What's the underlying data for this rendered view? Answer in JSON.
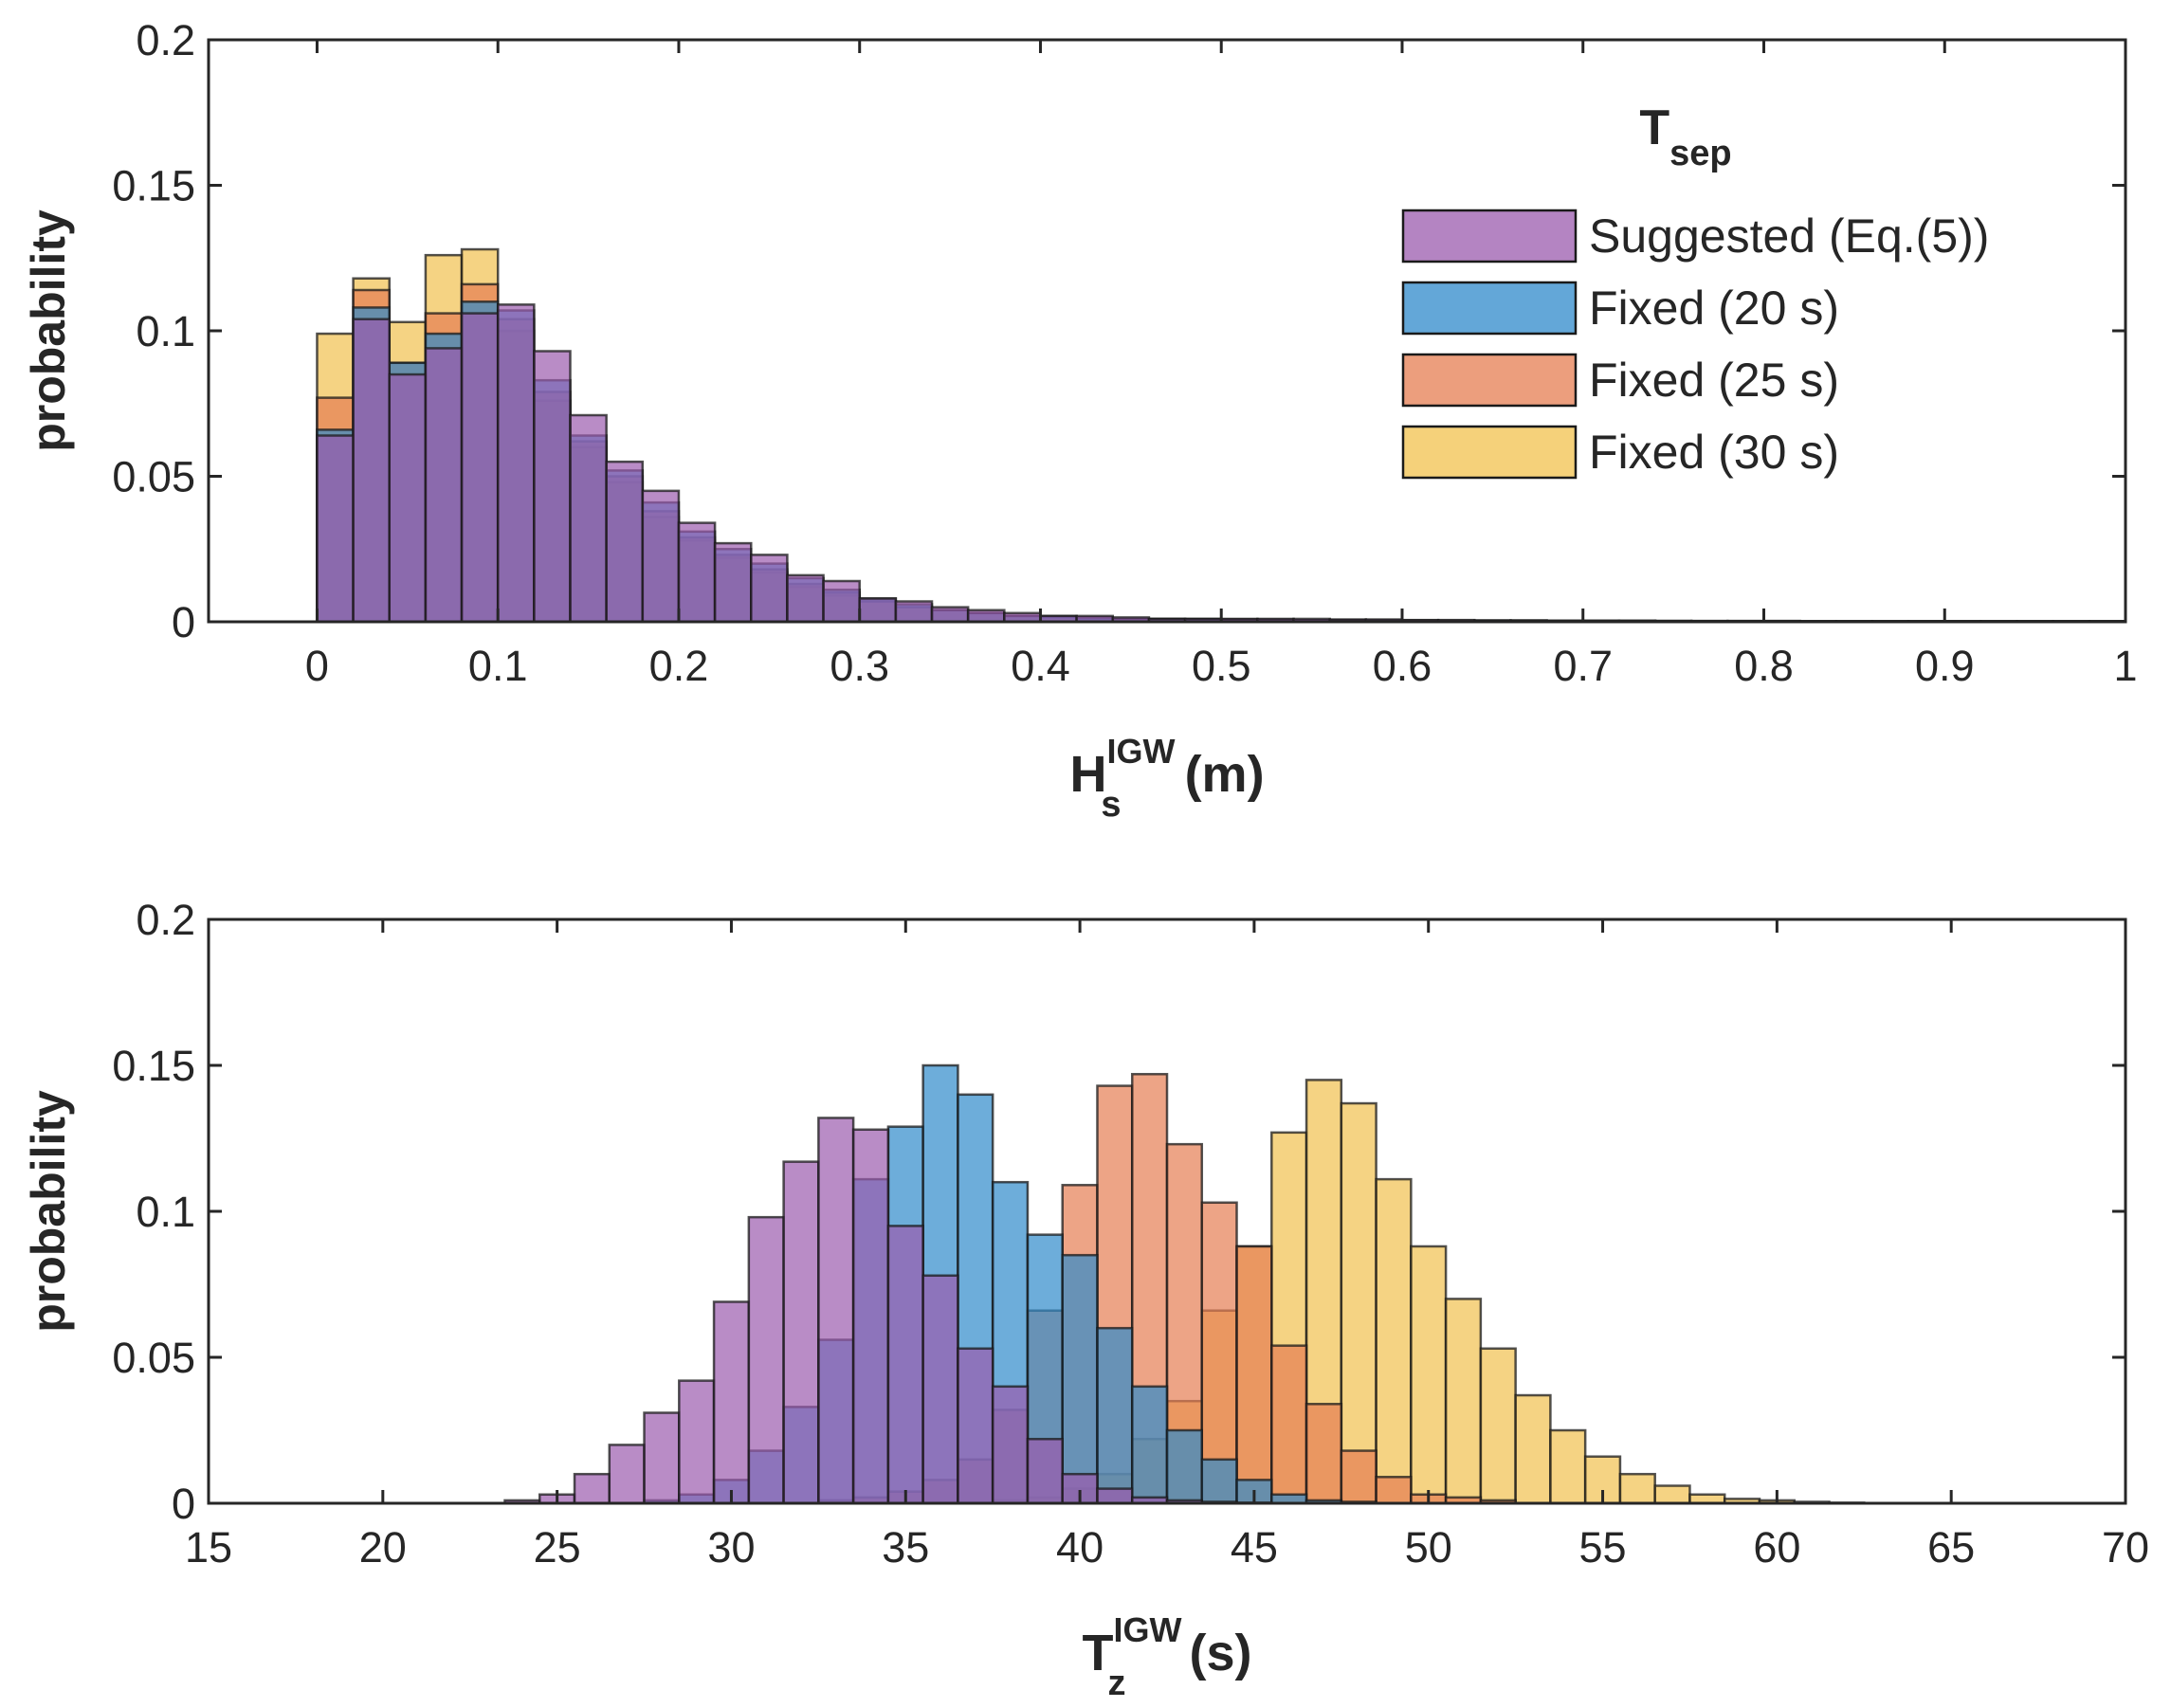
{
  "legend": {
    "title_main": "T",
    "title_sub": "sep",
    "placement": "top-right of upper panel",
    "entries": [
      {
        "label": "Suggested (Eq.(5))",
        "color": "#9B5BAE"
      },
      {
        "label": "Fixed (20 s)",
        "color": "#2F8ACB"
      },
      {
        "label": "Fixed (25 s)",
        "color": "#E67E52"
      },
      {
        "label": "Fixed (30 s)",
        "color": "#F1C14E"
      }
    ]
  },
  "chart_data": [
    {
      "type": "bar",
      "subtype": "overlaid histogram",
      "ylabel": "probability",
      "xlabel": {
        "main": "H",
        "sub": "s",
        "sup": "IGW",
        "unit": "(m)"
      },
      "xlim": [
        -0.06,
        1.0
      ],
      "ylim": [
        0,
        0.2
      ],
      "xticks": [
        "0",
        "0.1",
        "0.2",
        "0.3",
        "0.4",
        "0.5",
        "0.6",
        "0.7",
        "0.8",
        "0.9",
        "1"
      ],
      "yticks": [
        "0",
        "0.05",
        "0.1",
        "0.15",
        "0.2"
      ],
      "bin_start": 0.0,
      "bin_width": 0.02,
      "grid": false,
      "series": [
        {
          "name": "Suggested (Eq.(5))",
          "values": [
            0.064,
            0.104,
            0.085,
            0.094,
            0.106,
            0.109,
            0.093,
            0.071,
            0.055,
            0.045,
            0.034,
            0.027,
            0.023,
            0.016,
            0.014,
            0.008,
            0.007,
            0.005,
            0.004,
            0.003,
            0.002,
            0.002,
            0.0015,
            0.001,
            0.001,
            0.001,
            0.001,
            0.001,
            0.0008,
            0.0008,
            0.0006,
            0.0006,
            0.0005,
            0.0005,
            0.0004,
            0.0004,
            0.0004,
            0.0003,
            0.0003,
            0.0003,
            0.0003,
            0.0002,
            0.0002,
            0.0002,
            0.0002,
            0.0002,
            0.0002,
            0.0002,
            0.0002,
            0.0002
          ]
        },
        {
          "name": "Fixed (20 s)",
          "values": [
            0.066,
            0.108,
            0.089,
            0.099,
            0.11,
            0.107,
            0.083,
            0.064,
            0.052,
            0.041,
            0.031,
            0.025,
            0.02,
            0.015,
            0.011,
            0.008,
            0.006,
            0.004,
            0.003,
            0.002,
            0.002,
            0.0015,
            0.001,
            0.001,
            0.001,
            0.0008,
            0.0008,
            0.0006,
            0.0006,
            0.0005,
            0.0005,
            0.0004,
            0.0004,
            0.0004,
            0.0003,
            0.0003,
            0.0003,
            0.0003,
            0.0002,
            0.0002,
            0.0002,
            0.0002,
            0.0002,
            0.0002,
            0.0002,
            0.0002,
            0.0002,
            0.0002,
            0.0002,
            0.0002
          ]
        },
        {
          "name": "Fixed (25 s)",
          "values": [
            0.077,
            0.114,
            0.089,
            0.106,
            0.116,
            0.104,
            0.079,
            0.062,
            0.05,
            0.038,
            0.029,
            0.023,
            0.018,
            0.013,
            0.01,
            0.007,
            0.005,
            0.004,
            0.003,
            0.002,
            0.0015,
            0.001,
            0.001,
            0.001,
            0.0008,
            0.0008,
            0.0006,
            0.0006,
            0.0005,
            0.0005,
            0.0004,
            0.0004,
            0.0004,
            0.0003,
            0.0003,
            0.0003,
            0.0003,
            0.0002,
            0.0002,
            0.0002,
            0.0002,
            0.0002,
            0.0002,
            0.0002,
            0.0002,
            0.0002,
            0.0002,
            0.0002,
            0.0002,
            0.0002
          ]
        },
        {
          "name": "Fixed (30 s)",
          "values": [
            0.099,
            0.118,
            0.103,
            0.126,
            0.128,
            0.1,
            0.076,
            0.06,
            0.048,
            0.036,
            0.028,
            0.022,
            0.017,
            0.012,
            0.009,
            0.007,
            0.005,
            0.004,
            0.003,
            0.002,
            0.0015,
            0.001,
            0.001,
            0.0008,
            0.0008,
            0.0006,
            0.0006,
            0.0005,
            0.0005,
            0.0004,
            0.0004,
            0.0004,
            0.0003,
            0.0003,
            0.0003,
            0.0003,
            0.0002,
            0.0002,
            0.0002,
            0.0002,
            0.0002,
            0.0002,
            0.0002,
            0.0002,
            0.0002,
            0.0002,
            0.0002,
            0.0002,
            0.0002,
            0.0002
          ]
        }
      ]
    },
    {
      "type": "bar",
      "subtype": "overlaid histogram",
      "ylabel": "probability",
      "xlabel": {
        "main": "T",
        "sub": "z",
        "sup": "IGW",
        "unit": "(s)"
      },
      "xlim": [
        15,
        70
      ],
      "ylim": [
        0,
        0.2
      ],
      "xticks": [
        "15",
        "20",
        "25",
        "30",
        "35",
        "40",
        "45",
        "50",
        "55",
        "60",
        "65",
        "70"
      ],
      "yticks": [
        "0",
        "0.05",
        "0.1",
        "0.15",
        "0.2"
      ],
      "bin_start": 17.5,
      "bin_width": 1.0,
      "grid": false,
      "series": [
        {
          "name": "Suggested (Eq.(5))",
          "values": [
            0,
            0,
            0,
            0,
            0,
            0,
            0.001,
            0.003,
            0.01,
            0.02,
            0.031,
            0.042,
            0.069,
            0.098,
            0.117,
            0.132,
            0.128,
            0.095,
            0.078,
            0.053,
            0.04,
            0.022,
            0.01,
            0.005,
            0.002,
            0.001,
            0.0005,
            0.0002,
            0,
            0,
            0,
            0,
            0,
            0,
            0,
            0,
            0,
            0,
            0,
            0,
            0,
            0,
            0,
            0,
            0,
            0,
            0,
            0,
            0,
            0,
            0
          ]
        },
        {
          "name": "Fixed (20 s)",
          "values": [
            0,
            0,
            0,
            0,
            0,
            0,
            0,
            0,
            0,
            0,
            0.001,
            0.003,
            0.008,
            0.018,
            0.033,
            0.056,
            0.111,
            0.129,
            0.15,
            0.14,
            0.11,
            0.092,
            0.085,
            0.06,
            0.04,
            0.025,
            0.015,
            0.008,
            0.003,
            0.001,
            0.0005,
            0,
            0,
            0,
            0,
            0,
            0,
            0,
            0,
            0,
            0,
            0,
            0,
            0,
            0,
            0,
            0,
            0,
            0,
            0,
            0
          ]
        },
        {
          "name": "Fixed (25 s)",
          "values": [
            0,
            0,
            0,
            0,
            0,
            0,
            0,
            0,
            0,
            0,
            0,
            0,
            0,
            0,
            0,
            0.001,
            0.002,
            0.004,
            0.008,
            0.015,
            0.032,
            0.066,
            0.109,
            0.143,
            0.147,
            0.123,
            0.103,
            0.088,
            0.054,
            0.034,
            0.018,
            0.009,
            0.003,
            0.002,
            0.001,
            0,
            0,
            0,
            0,
            0,
            0,
            0,
            0,
            0,
            0,
            0,
            0,
            0,
            0,
            0,
            0
          ]
        },
        {
          "name": "Fixed (30 s)",
          "values": [
            0,
            0,
            0,
            0,
            0,
            0,
            0,
            0,
            0,
            0,
            0,
            0,
            0,
            0,
            0,
            0,
            0,
            0,
            0,
            0,
            0.001,
            0.002,
            0.005,
            0.01,
            0.022,
            0.035,
            0.066,
            0.088,
            0.127,
            0.145,
            0.137,
            0.111,
            0.088,
            0.07,
            0.053,
            0.037,
            0.025,
            0.016,
            0.01,
            0.006,
            0.003,
            0.0015,
            0.001,
            0.0005,
            0.0002,
            0,
            0,
            0,
            0,
            0,
            0
          ]
        }
      ]
    }
  ]
}
